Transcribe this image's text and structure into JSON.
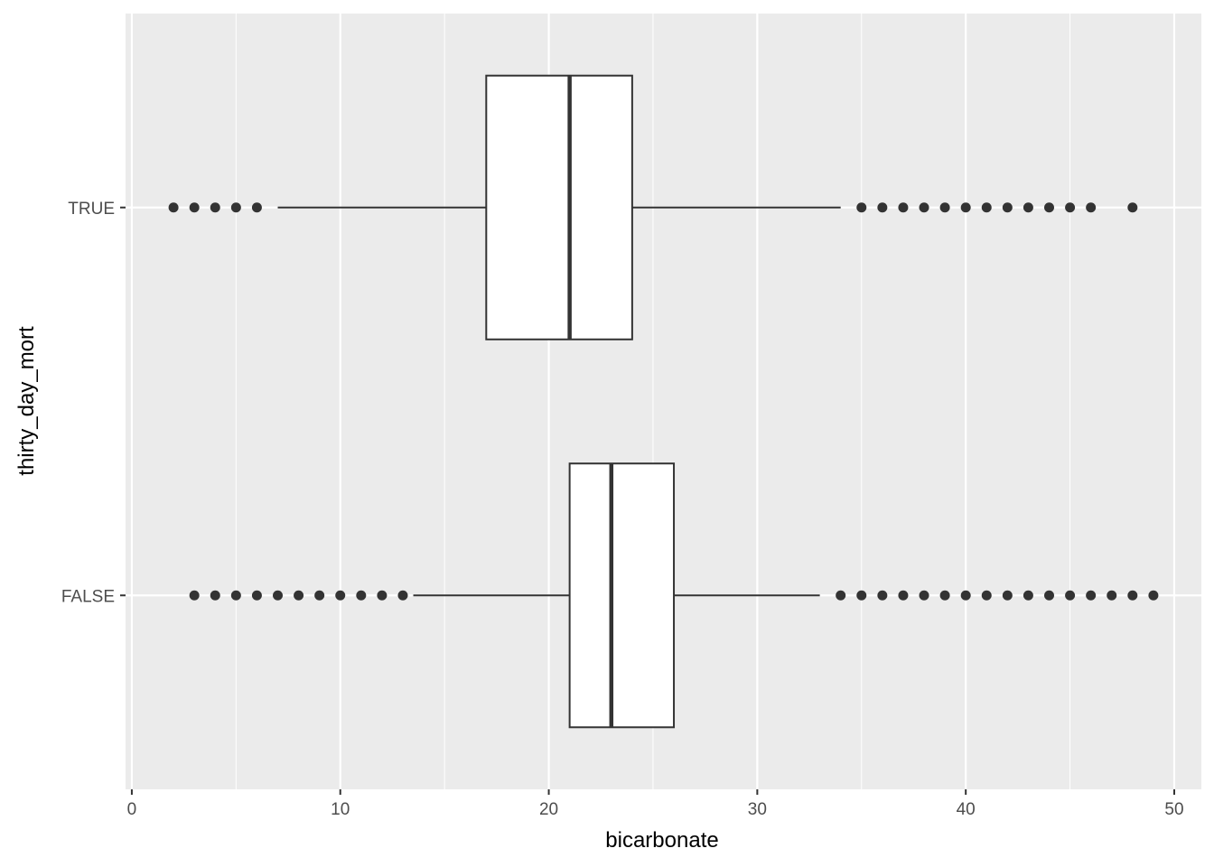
{
  "chart_data": {
    "type": "boxplot",
    "orientation": "horizontal",
    "xlabel": "bicarbonate",
    "ylabel": "thirty_day_mort",
    "xlim": [
      -0.3,
      51.3
    ],
    "x_ticks": [
      0,
      10,
      20,
      30,
      40,
      50
    ],
    "x_minor_ticks": [
      5,
      15,
      25,
      35,
      45
    ],
    "categories": [
      "FALSE",
      "TRUE"
    ],
    "boxes": [
      {
        "category": "FALSE",
        "whisker_low": 13.5,
        "q1": 21,
        "median": 23,
        "q3": 26,
        "whisker_high": 33,
        "outliers": [
          3,
          4,
          5,
          6,
          7,
          8,
          9,
          10,
          11,
          12,
          13,
          34,
          35,
          36,
          37,
          38,
          39,
          40,
          41,
          42,
          43,
          44,
          45,
          46,
          47,
          48,
          49
        ]
      },
      {
        "category": "TRUE",
        "whisker_low": 7,
        "q1": 17,
        "median": 21,
        "q3": 24,
        "whisker_high": 34,
        "outliers": [
          2,
          3,
          4,
          5,
          6,
          35,
          36,
          37,
          38,
          39,
          40,
          41,
          42,
          43,
          44,
          45,
          46,
          48
        ]
      }
    ],
    "grid": true,
    "colors": {
      "panel_background": "#ebebeb",
      "grid_line": "#ffffff",
      "box_fill": "#ffffff",
      "box_stroke": "#333333",
      "outlier": "#333333"
    }
  }
}
